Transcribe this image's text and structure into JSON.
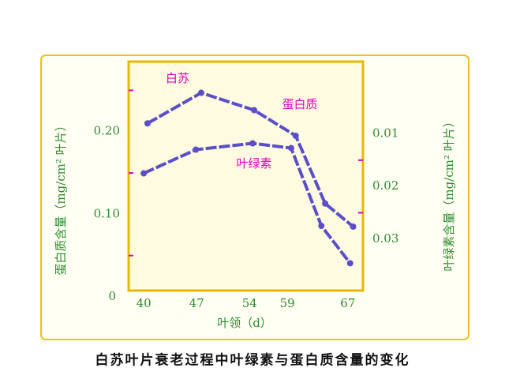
{
  "chart_data": {
    "type": "line",
    "title": "白苏叶片衰老过程中叶绿素与蛋白质含量的变化",
    "x_label": "叶领（d）",
    "y_label": "蛋白质含量（mg/cm² 叶片）",
    "y2_label": "叶绿素含量（mg/cm² 叶片）",
    "annotation": "白苏",
    "xlim": [
      38,
      69
    ],
    "xticks": [
      40,
      47,
      54,
      59,
      67
    ],
    "ylim": [
      0,
      0.28
    ],
    "yticks": [
      0,
      {
        "value": 0.1,
        "label": "0.10"
      },
      {
        "value": 0.2,
        "label": "0.20"
      }
    ],
    "yminor": [
      0.05,
      0.15,
      0.25
    ],
    "y2lim": [
      0.041,
      -0.003
    ],
    "y2ticks": [
      0.01,
      0.02,
      0.03
    ],
    "y2minor": [
      0.015,
      0.025
    ],
    "series": [
      {
        "name": "蛋白质",
        "color": "#5a4fc8",
        "axis": "y",
        "x": [
          40.5,
          47.6,
          54.6,
          60.1,
          64,
          67.7
        ],
        "values": [
          0.21,
          0.247,
          0.226,
          0.195,
          0.113,
          0.085
        ]
      },
      {
        "name": "叶绿素",
        "color": "#5a4fc8",
        "axis": "y2",
        "x": [
          40,
          46.9,
          54.4,
          59.5,
          63.5,
          67.3
        ],
        "values": [
          0.0175,
          0.013,
          0.0118,
          0.0127,
          0.0275,
          0.0346
        ]
      }
    ]
  }
}
